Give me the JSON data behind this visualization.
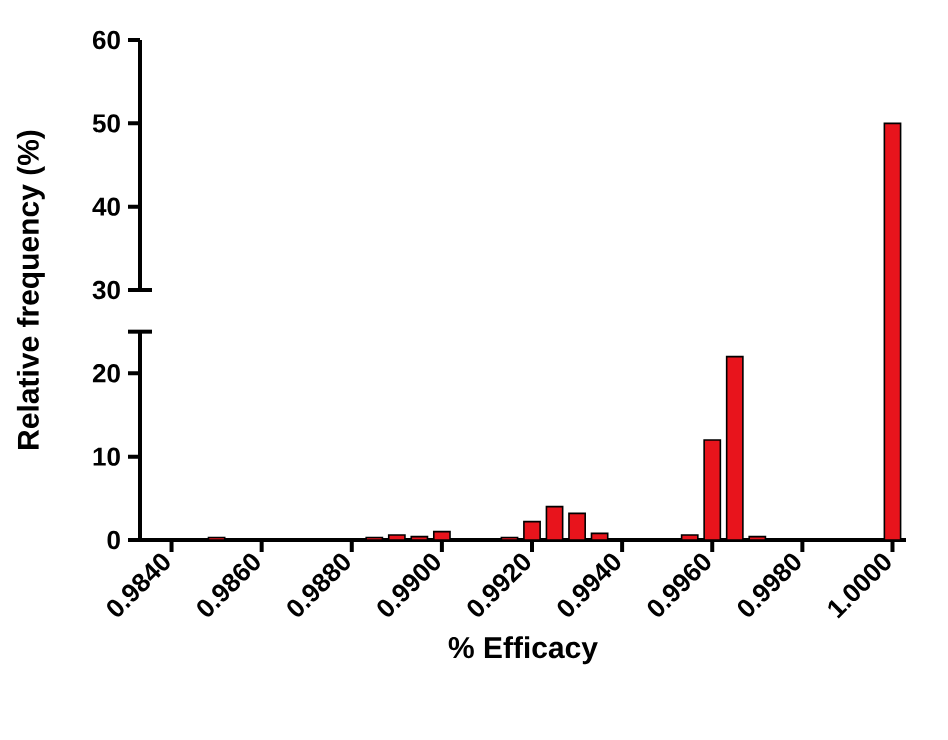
{
  "chart_data": {
    "type": "bar",
    "x": [
      0.9845,
      0.985,
      0.988,
      0.9885,
      0.989,
      0.9895,
      0.99,
      0.9915,
      0.992,
      0.9925,
      0.993,
      0.9935,
      0.9955,
      0.996,
      0.9965,
      0.997,
      1.0
    ],
    "values": [
      0.1,
      0.3,
      0.1,
      0.3,
      0.6,
      0.4,
      1.0,
      0.3,
      2.2,
      4.0,
      3.2,
      0.8,
      0.6,
      12.0,
      22,
      0.4,
      50
    ],
    "color": "#e8141c",
    "xlim": [
      0.9833,
      1.0003
    ],
    "ylim": [
      0,
      60
    ],
    "yticks": [
      0,
      10,
      20,
      30,
      40,
      50,
      60
    ],
    "xticks": [
      {
        "value": 0.984,
        "label": "0.9840"
      },
      {
        "value": 0.986,
        "label": "0.9860"
      },
      {
        "value": 0.988,
        "label": "0.9880"
      },
      {
        "value": 0.99,
        "label": "0.9900"
      },
      {
        "value": 0.992,
        "label": "0.9920"
      },
      {
        "value": 0.994,
        "label": "0.9940"
      },
      {
        "value": 0.996,
        "label": "0.9960"
      },
      {
        "value": 0.998,
        "label": "0.9980"
      },
      {
        "value": 1.0,
        "label": "1.0000"
      }
    ],
    "xlabel": "% Efficacy",
    "ylabel": "Relative frequency (%)"
  }
}
